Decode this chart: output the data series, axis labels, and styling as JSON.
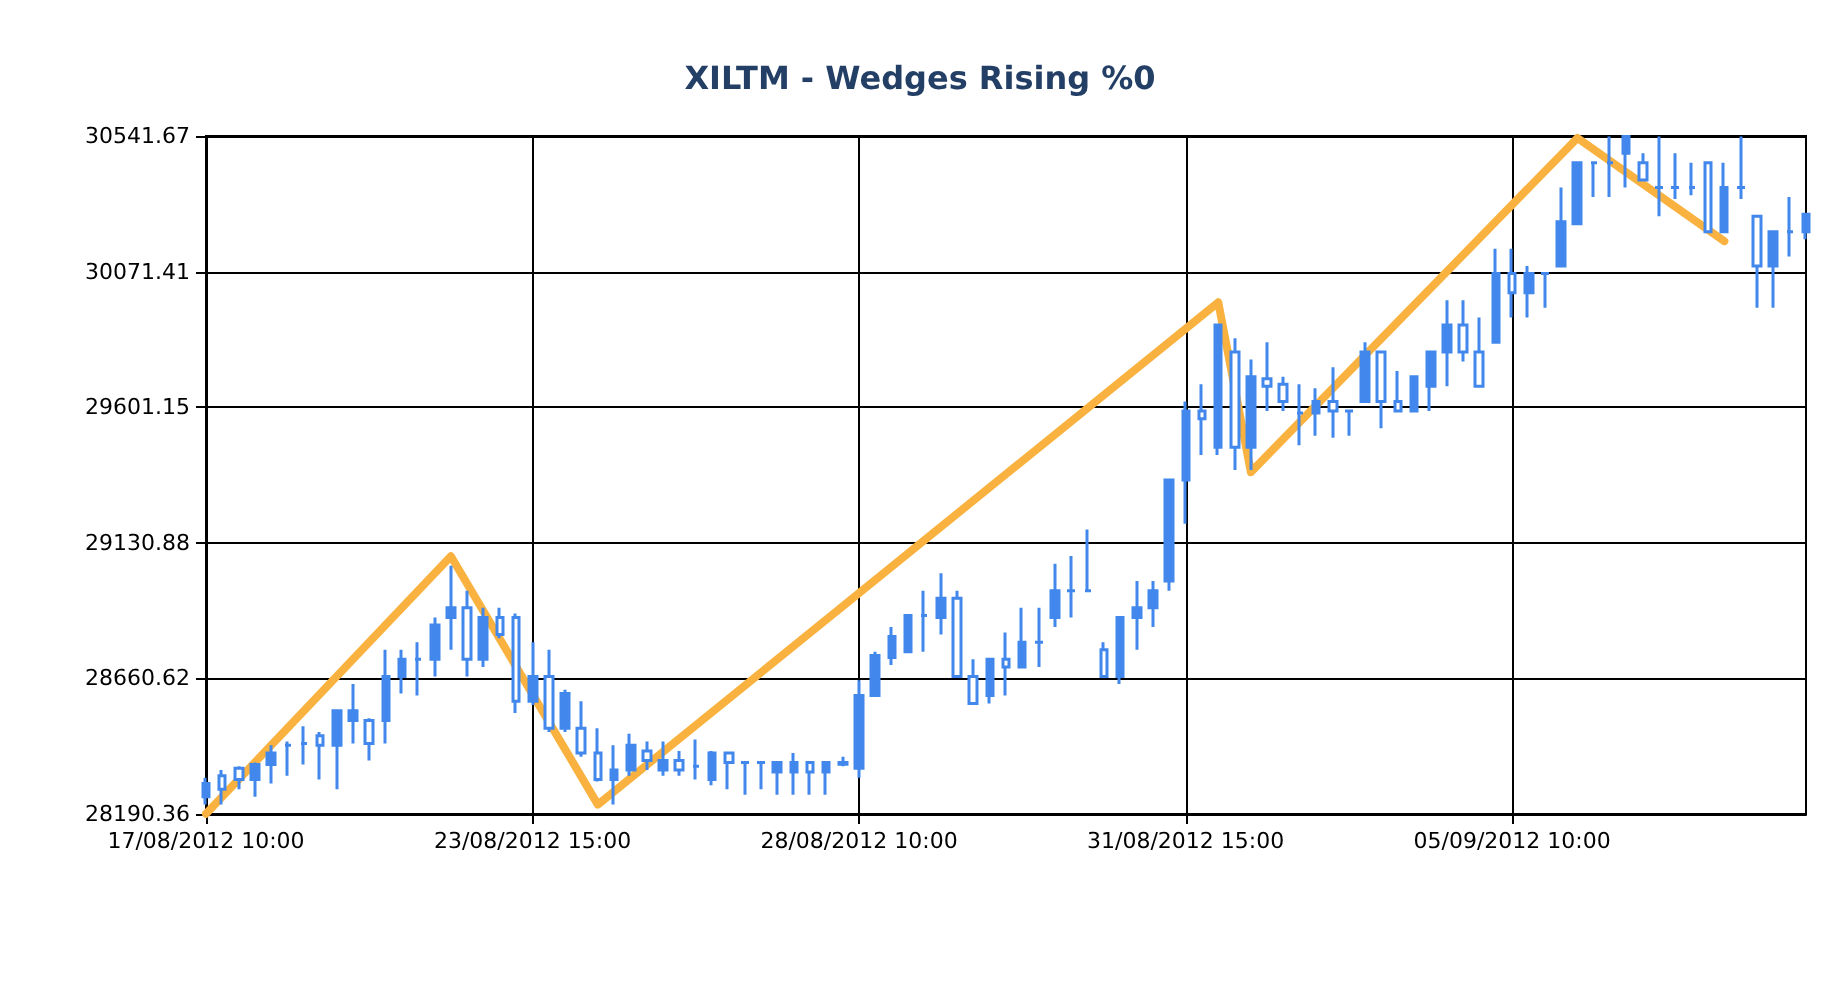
{
  "chart_data": {
    "type": "candlestick",
    "title": "XILTM - Wedges Rising %0",
    "color": "#4288ec",
    "categories": [
      "17/08/2012 10:00",
      null,
      null,
      null,
      null,
      null,
      null,
      null,
      null,
      null,
      null,
      null,
      null,
      null,
      null,
      null,
      null,
      null,
      null,
      null,
      "23/08/2012 15:00",
      null,
      null,
      null,
      null,
      null,
      null,
      null,
      null,
      null,
      null,
      null,
      null,
      null,
      null,
      null,
      null,
      null,
      null,
      null,
      "28/08/2012 10:00",
      null,
      null,
      null,
      null,
      null,
      null,
      null,
      null,
      null,
      null,
      null,
      null,
      null,
      null,
      null,
      null,
      null,
      null,
      null,
      "31/08/2012 15:00",
      null,
      null,
      null,
      null,
      null,
      null,
      null,
      null,
      null,
      null,
      null,
      null,
      null,
      null,
      null,
      null,
      null,
      null,
      null,
      "05/09/2012 10:00",
      null,
      null,
      null,
      null,
      null,
      null,
      null,
      null,
      null,
      null,
      null,
      null,
      null,
      null,
      null,
      null,
      null,
      null
    ],
    "ohlc": [
      [
        28250,
        28316,
        28223,
        28296
      ],
      [
        28323,
        28343,
        28223,
        28276
      ],
      [
        28349,
        28356,
        28276,
        28310
      ],
      [
        28310,
        28369,
        28250,
        28362
      ],
      [
        28362,
        28429,
        28296,
        28402
      ],
      [
        28429,
        28442,
        28323,
        28429
      ],
      [
        28435,
        28495,
        28362,
        28435
      ],
      [
        28462,
        28475,
        28310,
        28429
      ],
      [
        28429,
        28548,
        28276,
        28548
      ],
      [
        28515,
        28641,
        28435,
        28548
      ],
      [
        28515,
        28522,
        28376,
        28435
      ],
      [
        28515,
        28760,
        28435,
        28667
      ],
      [
        28667,
        28760,
        28608,
        28727
      ],
      [
        28727,
        28786,
        28601,
        28727
      ],
      [
        28727,
        28872,
        28667,
        28846
      ],
      [
        28872,
        29051,
        28760,
        28906
      ],
      [
        28906,
        28965,
        28667,
        28727
      ],
      [
        28727,
        28906,
        28700,
        28872
      ],
      [
        28872,
        28906,
        28800,
        28813
      ],
      [
        28872,
        28886,
        28541,
        28581
      ],
      [
        28581,
        28786,
        28568,
        28667
      ],
      [
        28667,
        28760,
        28475,
        28488
      ],
      [
        28488,
        28621,
        28475,
        28608
      ],
      [
        28488,
        28581,
        28389,
        28402
      ],
      [
        28402,
        28488,
        28303,
        28310
      ],
      [
        28310,
        28429,
        28223,
        28343
      ],
      [
        28343,
        28469,
        28323,
        28429
      ],
      [
        28409,
        28442,
        28343,
        28376
      ],
      [
        28343,
        28442,
        28323,
        28376
      ],
      [
        28376,
        28409,
        28323,
        28343
      ],
      [
        28356,
        28449,
        28310,
        28356
      ],
      [
        28310,
        28409,
        28290,
        28402
      ],
      [
        28402,
        28402,
        28276,
        28369
      ],
      [
        28369,
        28369,
        28257,
        28369
      ],
      [
        28369,
        28369,
        28276,
        28369
      ],
      [
        28336,
        28369,
        28257,
        28369
      ],
      [
        28336,
        28402,
        28257,
        28369
      ],
      [
        28369,
        28369,
        28257,
        28336
      ],
      [
        28336,
        28369,
        28257,
        28369
      ],
      [
        28363,
        28389,
        28356,
        28369
      ],
      [
        28349,
        28654,
        28316,
        28601
      ],
      [
        28601,
        28753,
        28601,
        28740
      ],
      [
        28733,
        28839,
        28707,
        28806
      ],
      [
        28753,
        28879,
        28753,
        28879
      ],
      [
        28879,
        28965,
        28753,
        28879
      ],
      [
        28872,
        29025,
        28813,
        28939
      ],
      [
        28939,
        28965,
        28667,
        28667
      ],
      [
        28667,
        28727,
        28574,
        28574
      ],
      [
        28601,
        28727,
        28574,
        28727
      ],
      [
        28727,
        28820,
        28601,
        28700
      ],
      [
        28700,
        28906,
        28700,
        28786
      ],
      [
        28786,
        28906,
        28700,
        28786
      ],
      [
        28872,
        29058,
        28839,
        28965
      ],
      [
        28965,
        29085,
        28872,
        28965
      ],
      [
        28965,
        29177,
        28965,
        28965
      ],
      [
        28760,
        28786,
        28667,
        28667
      ],
      [
        28667,
        28872,
        28641,
        28872
      ],
      [
        28872,
        28998,
        28760,
        28906
      ],
      [
        28906,
        28998,
        28839,
        28965
      ],
      [
        28998,
        29349,
        28965,
        29349
      ],
      [
        29349,
        29621,
        29197,
        29588
      ],
      [
        29588,
        29681,
        29435,
        29561
      ],
      [
        29462,
        29886,
        29435,
        29886
      ],
      [
        29793,
        29840,
        29383,
        29462
      ],
      [
        29462,
        29767,
        29383,
        29707
      ],
      [
        29700,
        29826,
        29588,
        29674
      ],
      [
        29681,
        29707,
        29588,
        29621
      ],
      [
        29581,
        29681,
        29469,
        29581
      ],
      [
        29581,
        29667,
        29502,
        29621
      ],
      [
        29621,
        29740,
        29495,
        29588
      ],
      [
        29588,
        29588,
        29502,
        29588
      ],
      [
        29621,
        29826,
        29621,
        29793
      ],
      [
        29793,
        29793,
        29528,
        29621
      ],
      [
        29621,
        29727,
        29588,
        29588
      ],
      [
        29588,
        29707,
        29588,
        29707
      ],
      [
        29674,
        29793,
        29588,
        29793
      ],
      [
        29793,
        29972,
        29674,
        29886
      ],
      [
        29886,
        29972,
        29760,
        29793
      ],
      [
        29793,
        29912,
        29674,
        29674
      ],
      [
        29826,
        30151,
        29826,
        30065
      ],
      [
        30065,
        30151,
        29912,
        29998
      ],
      [
        29998,
        30091,
        29912,
        30065
      ],
      [
        30065,
        30065,
        29946,
        30065
      ],
      [
        30091,
        30363,
        30091,
        30244
      ],
      [
        30237,
        30449,
        30237,
        30449
      ],
      [
        30449,
        30449,
        30330,
        30449
      ],
      [
        30449,
        30540,
        30330,
        30449
      ],
      [
        30482,
        30540,
        30363,
        30540
      ],
      [
        30449,
        30482,
        30389,
        30389
      ],
      [
        30363,
        30540,
        30263,
        30363
      ],
      [
        30363,
        30482,
        30323,
        30363
      ],
      [
        30363,
        30449,
        30336,
        30363
      ],
      [
        30449,
        30449,
        30210,
        30210
      ],
      [
        30210,
        30449,
        30210,
        30363
      ],
      [
        30363,
        30540,
        30323,
        30363
      ],
      [
        30263,
        30263,
        29946,
        30091
      ],
      [
        30091,
        30210,
        29946,
        30210
      ],
      [
        30210,
        30330,
        30124,
        30210
      ],
      [
        30210,
        30270,
        30184,
        30270
      ]
    ],
    "series": [
      {
        "type": "line",
        "color": "#f9b23f",
        "values": [
          28191,
          null,
          null,
          null,
          null,
          null,
          null,
          null,
          null,
          null,
          null,
          null,
          null,
          null,
          null,
          29084,
          null,
          null,
          null,
          null,
          null,
          null,
          null,
          null,
          28223,
          null,
          null,
          null,
          null,
          null,
          null,
          null,
          null,
          null,
          null,
          null,
          null,
          null,
          null,
          null,
          null,
          null,
          null,
          null,
          null,
          null,
          null,
          null,
          null,
          null,
          null,
          null,
          null,
          null,
          null,
          null,
          null,
          null,
          null,
          null,
          null,
          null,
          29965,
          null,
          29376,
          null,
          null,
          null,
          null,
          null,
          null,
          null,
          null,
          null,
          null,
          null,
          null,
          null,
          null,
          null,
          null,
          null,
          null,
          null,
          30535,
          null,
          null,
          null,
          null,
          null,
          null,
          null,
          null,
          30177,
          null,
          null,
          null,
          null,
          null
        ]
      }
    ],
    "ylim": [
      28190.36,
      30541.67
    ],
    "yticks": [
      28190.36,
      28660.62,
      29130.88,
      29601.15,
      30071.41,
      30541.67
    ],
    "grid": true
  }
}
